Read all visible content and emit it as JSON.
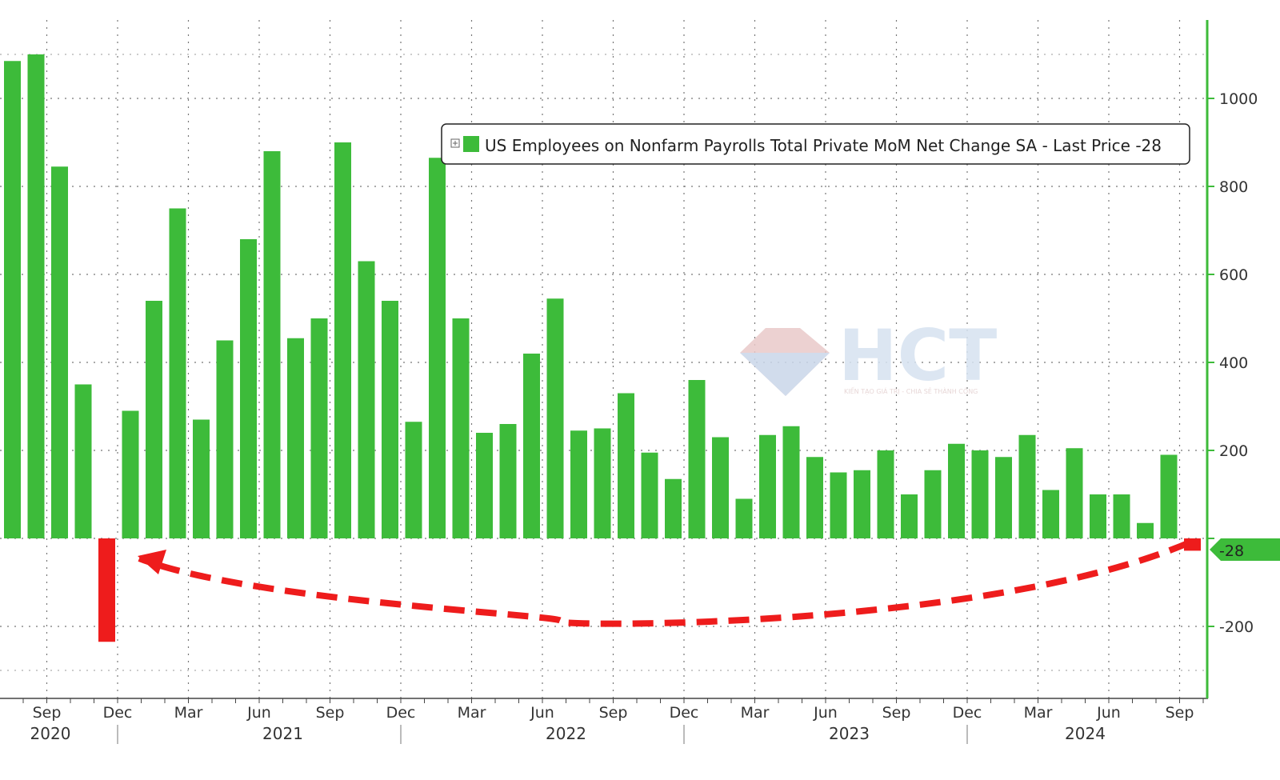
{
  "chart_data": {
    "type": "bar",
    "title": "",
    "legend": {
      "label": "US Employees on Nonfarm Payrolls Total Private MoM Net Change SA - Last Price -28",
      "placement": "top-right",
      "swatch_color": "#3dbb3a"
    },
    "last_value_label": "-28",
    "colors": {
      "positive": "#3dbb3a",
      "highlight": "#ee1c1c",
      "axis": "#3dbb3a"
    },
    "y_axis": {
      "position": "right",
      "ylim": [
        -360,
        1190
      ],
      "ticks": [
        -200,
        0,
        200,
        400,
        600,
        800,
        1000
      ]
    },
    "x_month_labels": [
      "Sep",
      "Dec",
      "Mar",
      "Jun",
      "Sep",
      "Dec",
      "Mar",
      "Jun",
      "Sep",
      "Dec",
      "Mar",
      "Jun",
      "Sep",
      "Dec",
      "Mar",
      "Jun",
      "Sep"
    ],
    "x_year_labels": [
      "2020",
      "2021",
      "2022",
      "2023",
      "2024"
    ],
    "grid": true,
    "series": [
      {
        "months": [
          "2020-08",
          "2020-09",
          "2020-10",
          "2020-11",
          "2020-12",
          "2021-01",
          "2021-02",
          "2021-03",
          "2021-04",
          "2021-05",
          "2021-06",
          "2021-07",
          "2021-08",
          "2021-09",
          "2021-10",
          "2021-11",
          "2021-12",
          "2022-01",
          "2022-02",
          "2022-03",
          "2022-04",
          "2022-05",
          "2022-06",
          "2022-07",
          "2022-08",
          "2022-09",
          "2022-10",
          "2022-11",
          "2022-12",
          "2023-01",
          "2023-02",
          "2023-03",
          "2023-04",
          "2023-05",
          "2023-06",
          "2023-07",
          "2023-08",
          "2023-09",
          "2023-10",
          "2023-11",
          "2023-12",
          "2024-01",
          "2024-02",
          "2024-03",
          "2024-04",
          "2024-05",
          "2024-06",
          "2024-07",
          "2024-08",
          "2024-09",
          "2024-10"
        ],
        "values": [
          1085,
          1100,
          845,
          350,
          -235,
          290,
          540,
          750,
          270,
          450,
          680,
          880,
          455,
          500,
          900,
          630,
          540,
          265,
          865,
          500,
          240,
          260,
          420,
          545,
          245,
          250,
          330,
          195,
          135,
          360,
          230,
          90,
          235,
          255,
          185,
          150,
          155,
          200,
          100,
          155,
          215,
          200,
          185,
          235,
          110,
          205,
          100,
          100,
          35,
          190,
          -28
        ]
      }
    ],
    "annotation": {
      "type": "dashed-arrow",
      "from": "2024-10",
      "to": "2020-12",
      "color": "#ee1c1c"
    }
  },
  "watermark": {
    "logo_text": "HCT",
    "tagline": "KIẾN TẠO GIÁ TRỊ - CHIA SẺ THÀNH CÔNG"
  }
}
